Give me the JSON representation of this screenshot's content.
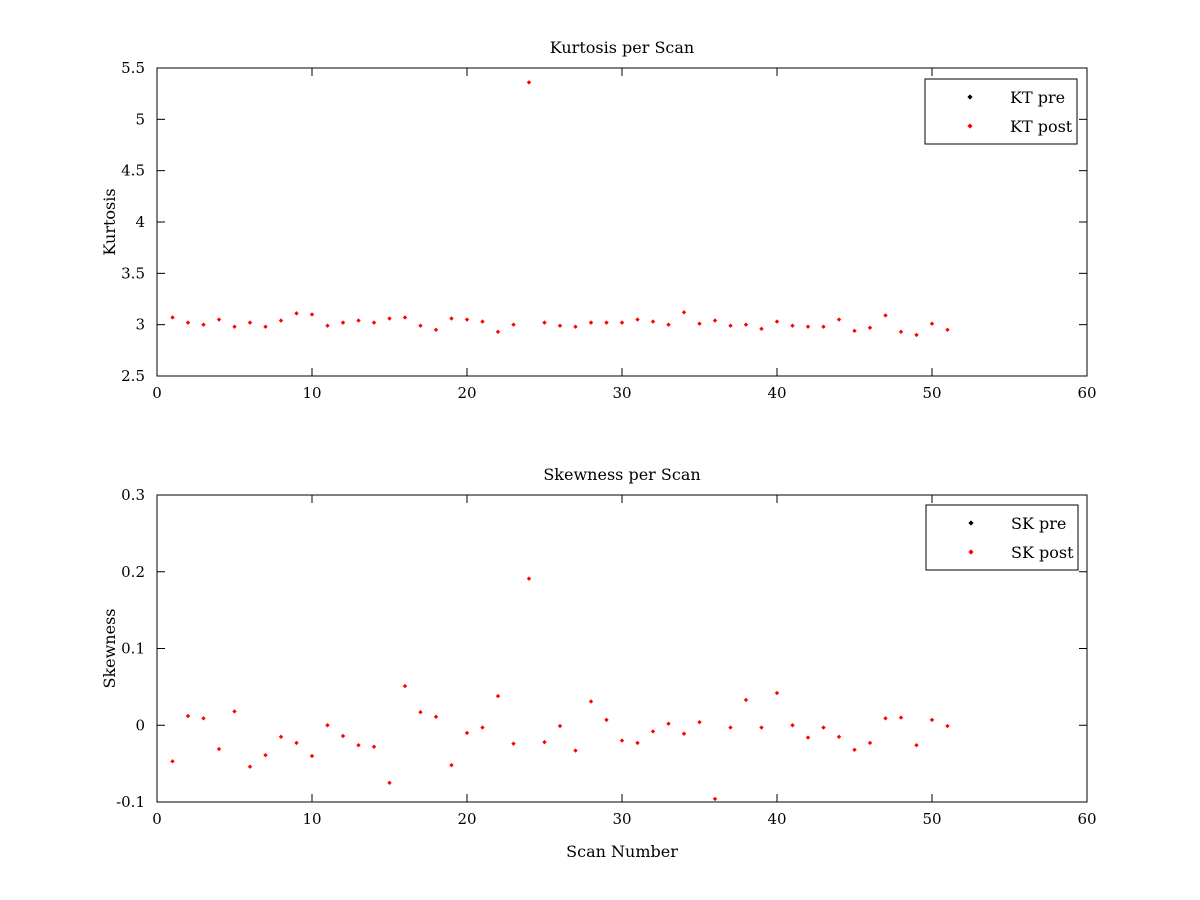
{
  "chart_data": [
    {
      "type": "scatter",
      "title": "Kurtosis per Scan",
      "xlabel": "",
      "ylabel": "Kurtosis",
      "xlim": [
        0,
        60
      ],
      "ylim": [
        2.5,
        5.5
      ],
      "xticks": [
        "0",
        "10",
        "20",
        "30",
        "40",
        "50",
        "60"
      ],
      "yticks": [
        "2.5",
        "3",
        "3.5",
        "4",
        "4.5",
        "5",
        "5.5"
      ],
      "legend_position": "top-right",
      "series": [
        {
          "name": "KT pre",
          "color": "#000000",
          "x": [],
          "y": []
        },
        {
          "name": "KT post",
          "color": "#ff0000",
          "x": [
            1,
            2,
            3,
            4,
            5,
            6,
            7,
            8,
            9,
            10,
            11,
            12,
            13,
            14,
            15,
            16,
            17,
            18,
            19,
            20,
            21,
            22,
            23,
            24,
            25,
            26,
            27,
            28,
            29,
            30,
            31,
            32,
            33,
            34,
            35,
            36,
            37,
            38,
            39,
            40,
            41,
            42,
            43,
            44,
            45,
            46,
            47,
            48,
            49,
            50,
            51
          ],
          "y": [
            3.07,
            3.02,
            3.0,
            3.05,
            2.98,
            3.02,
            2.98,
            3.04,
            3.11,
            3.1,
            2.99,
            3.02,
            3.04,
            3.02,
            3.06,
            3.07,
            2.99,
            2.95,
            3.06,
            3.05,
            3.03,
            2.93,
            3.0,
            5.36,
            3.02,
            2.99,
            2.98,
            3.02,
            3.02,
            3.02,
            3.05,
            3.03,
            3.0,
            3.12,
            3.01,
            3.04,
            2.99,
            3.0,
            2.96,
            3.03,
            2.99,
            2.98,
            2.98,
            3.05,
            2.94,
            2.97,
            3.09,
            2.93,
            2.9,
            3.01,
            2.95
          ]
        }
      ]
    },
    {
      "type": "scatter",
      "title": "Skewness per Scan",
      "xlabel": "Scan Number",
      "ylabel": "Skewness",
      "xlim": [
        0,
        60
      ],
      "ylim": [
        -0.1,
        0.3
      ],
      "xticks": [
        "0",
        "10",
        "20",
        "30",
        "40",
        "50",
        "60"
      ],
      "yticks": [
        "-0.1",
        "0",
        "0.1",
        "0.2",
        "0.3"
      ],
      "legend_position": "top-right",
      "series": [
        {
          "name": "SK pre",
          "color": "#000000",
          "x": [],
          "y": []
        },
        {
          "name": "SK post",
          "color": "#ff0000",
          "x": [
            1,
            2,
            3,
            4,
            5,
            6,
            7,
            8,
            9,
            10,
            11,
            12,
            13,
            14,
            15,
            16,
            17,
            18,
            19,
            20,
            21,
            22,
            23,
            24,
            25,
            26,
            27,
            28,
            29,
            30,
            31,
            32,
            33,
            34,
            35,
            36,
            37,
            38,
            39,
            40,
            41,
            42,
            43,
            44,
            45,
            46,
            47,
            48,
            49,
            50,
            51
          ],
          "y": [
            -0.047,
            0.012,
            0.009,
            -0.031,
            0.018,
            -0.054,
            -0.039,
            -0.015,
            -0.023,
            -0.04,
            0.0,
            -0.014,
            -0.026,
            -0.028,
            -0.075,
            0.051,
            0.017,
            0.011,
            -0.052,
            -0.01,
            -0.003,
            0.038,
            -0.024,
            0.191,
            -0.022,
            -0.001,
            -0.033,
            0.031,
            0.007,
            -0.02,
            -0.023,
            -0.008,
            0.002,
            -0.011,
            0.004,
            -0.096,
            -0.003,
            0.033,
            -0.003,
            0.042,
            0.0,
            -0.016,
            -0.003,
            -0.015,
            -0.032,
            -0.023,
            0.009,
            0.01,
            -0.026,
            0.007,
            -0.001
          ]
        }
      ]
    }
  ]
}
